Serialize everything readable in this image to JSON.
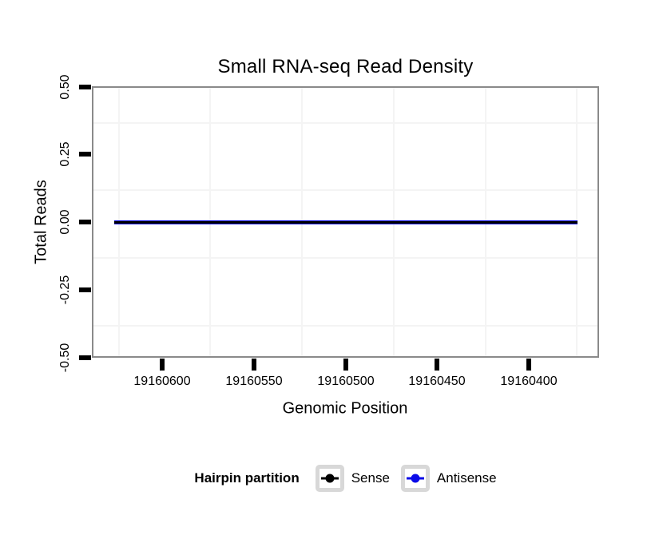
{
  "chart": {
    "title": "Small RNA-seq Read Density",
    "xlabel": "Genomic Position",
    "ylabel": "Total Reads"
  },
  "legend": {
    "title": "Hairpin partition",
    "items": [
      {
        "label": "Sense",
        "color": "#000000"
      },
      {
        "label": "Antisense",
        "color": "#0b0be8"
      }
    ]
  },
  "colors": {
    "panel_border": "#8a8a8a",
    "grid_minor": "#f4f4f4",
    "tick": "#000000",
    "legend_key_border": "#d8d8d8",
    "sense": "#000000",
    "antisense": "#0b0be8"
  },
  "chart_data": {
    "type": "line",
    "title": "Small RNA-seq Read Density",
    "xlabel": "Genomic Position",
    "ylabel": "Total Reads",
    "x_ticks": [
      "19160600",
      "19160550",
      "19160500",
      "19160450",
      "19160400"
    ],
    "x_tick_values": [
      19160600,
      19160550,
      19160500,
      19160450,
      19160400
    ],
    "y_ticks": [
      "0.50",
      "0.25",
      "0.00",
      "-0.25",
      "-0.50"
    ],
    "y_tick_values": [
      0.5,
      0.25,
      0.0,
      -0.25,
      -0.5
    ],
    "x_axis_reversed": true,
    "xlim": [
      19160639,
      19160361
    ],
    "ylim": [
      -0.5,
      0.5
    ],
    "grid": "minor gridlines only, very faint",
    "legend_title": "Hairpin partition",
    "legend_position": "bottom",
    "series": [
      {
        "name": "Sense",
        "color": "#000000",
        "x_start": 19160626,
        "x_end": 19160374,
        "y_constant": 0
      },
      {
        "name": "Antisense",
        "color": "#0b0be8",
        "x_start": 19160626,
        "x_end": 19160374,
        "y_constant": 0
      }
    ]
  }
}
